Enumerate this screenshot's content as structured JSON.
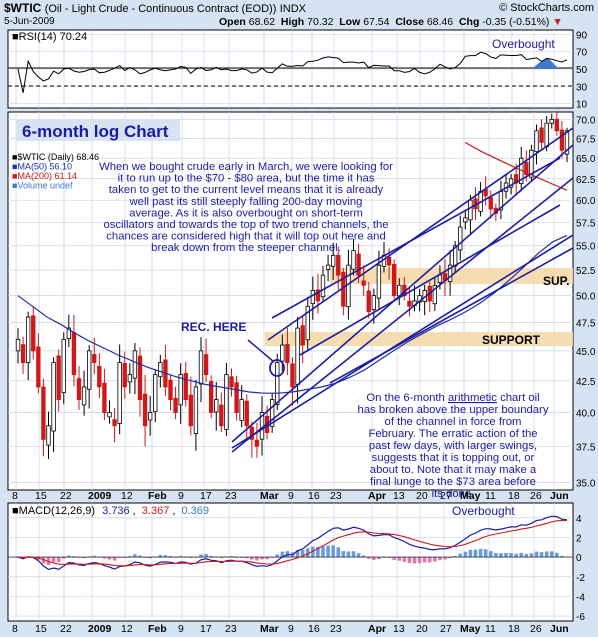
{
  "header": {
    "symbol": "$WTIC",
    "name": "(Oil - Light Crude - Continuous Contract (EOD))",
    "exchange": "INDX",
    "date": "5-Jun-2009",
    "open_label": "Open",
    "open": "68.62",
    "high_label": "High",
    "high": "70.32",
    "low_label": "Low",
    "low": "67.54",
    "close_label": "Close",
    "close": "68.46",
    "chg_label": "Chg",
    "chg": "-0.35 (-0.51%)",
    "copyright": "© StockCharts.com"
  },
  "rsi": {
    "label": "RSI(14) 70.24",
    "annotation": "Overbought",
    "ticks": [
      "90",
      "70",
      "50",
      "30",
      "10"
    ]
  },
  "price": {
    "chart_title": "6-month log Chart",
    "legend": [
      {
        "text": "$WTIC (Daily) 68.46",
        "color": "#000000"
      },
      {
        "text": "MA(50) 56.10",
        "color": "#1f2fa8"
      },
      {
        "text": "MA(200) 61.14",
        "color": "#d01818"
      },
      {
        "text": "Volume undef",
        "color": "#3a7ad0"
      }
    ],
    "ticks": [
      "70.0",
      "67.5",
      "65.0",
      "62.5",
      "60.0",
      "57.5",
      "55.0",
      "52.5",
      "50.0",
      "47.5",
      "45.0",
      "42.5",
      "40.0",
      "37.5",
      "35.0"
    ],
    "commentary_top": "When we bought crude early in March, we were looking for it to run up to the $70 - $80 area, but the time it has taken to get to the current level means that it is already well past its still steeply falling 200-day moving average. As it is also overbought on short-term oscillators and towards the top of two trend channels, the chances are considered high that it will top out here and break down from the steeper channel.",
    "commentary_bottom_1": "On the 6-month ",
    "commentary_bottom_u": "arithmetic",
    "commentary_bottom_2": " chart oil has broken above the upper boundary of the channel in force from February. The erratic action of the past few days, with larger swings, suggests that it is topping out, or about to. Note that it may make a final lunge to the $73 area before its done.",
    "rec_label": "REC. HERE",
    "sup_label": "SUP.",
    "support_label": "SUPPORT"
  },
  "macd": {
    "label_prefix": "MACD(12,26,9)",
    "val1": "3.736",
    "val2": "3.367",
    "val3": "0.369",
    "annotation": "Overbought",
    "ticks": [
      "4",
      "2",
      "0",
      "-2",
      "-4",
      "-6"
    ]
  },
  "xaxis": {
    "labels": [
      "8",
      "15",
      "22",
      "2009",
      "12",
      "Feb",
      "9",
      "17",
      "23",
      "Mar",
      "9",
      "16",
      "23",
      "Apr",
      "13",
      "20",
      "27",
      "May",
      "11",
      "18",
      "26",
      "Jun"
    ]
  },
  "colors": {
    "background": "#d6e3f3",
    "up_bar": "#000000",
    "down_bar": "#d01818",
    "ma50": "#1f2fa8",
    "ma200": "#d01818",
    "trendline": "#1c1ca0",
    "support_band": "#f5d9a8",
    "annotation_text": "#1c1ca0"
  },
  "chart_data": [
    {
      "type": "line",
      "title": "RSI(14) 70.24",
      "ylim": [
        10,
        90
      ],
      "series": [
        {
          "name": "RSI(14)",
          "last": 70.24
        }
      ]
    },
    {
      "type": "bar",
      "subtype": "ohlc",
      "title": "6-month log Chart",
      "log_scale": true,
      "ylim": [
        35,
        71
      ],
      "ohlc_last": {
        "open": 68.62,
        "high": 70.32,
        "low": 67.54,
        "close": 68.46
      },
      "closes": [
        46,
        44,
        48,
        45,
        42,
        38,
        39,
        44,
        41,
        46,
        47,
        43,
        41,
        42,
        45,
        44,
        42,
        40,
        40,
        39,
        44,
        42,
        43,
        45,
        41,
        39,
        40,
        43,
        44,
        42,
        41,
        40,
        43,
        41,
        39,
        42,
        45,
        43,
        40,
        41,
        39,
        43,
        42,
        40,
        41,
        39,
        38,
        37.5,
        40,
        38.5,
        41,
        44,
        45.5,
        44,
        42,
        47,
        45.5,
        49,
        50.5,
        49.5,
        52,
        53,
        54,
        52,
        49,
        53,
        54.5,
        52,
        51,
        48.5,
        50,
        53,
        54,
        53,
        50,
        51,
        50,
        49,
        49.5,
        50,
        50.5,
        49.5,
        51,
        52,
        51.5,
        53,
        55,
        57,
        58,
        60,
        59,
        61,
        60.5,
        59,
        58.5,
        61,
        62,
        62.5,
        62,
        65,
        63,
        66,
        68.5,
        67,
        69.5,
        70,
        68.5,
        66,
        68.5
      ],
      "series": [
        {
          "name": "MA(50)",
          "last": 56.1,
          "values": [
            50,
            49,
            48,
            47.3,
            46.5,
            45.8,
            45.2,
            44.6,
            44.1,
            43.6,
            43.2,
            42.8,
            42.5,
            42.2,
            42.0,
            41.8,
            41.6,
            41.5,
            41.5,
            41.6,
            41.8,
            42.0,
            42.3,
            42.8,
            43.4,
            44.2,
            45.0,
            45.8,
            46.5,
            47.2,
            47.8,
            48.5,
            49.3,
            50.3,
            51.5,
            52.8,
            54.2,
            55.4,
            56.1
          ]
        },
        {
          "name": "MA(200)",
          "last": 61.14,
          "values": [
            67,
            65.8,
            64.8,
            63.8,
            62.9,
            62.0,
            61.14
          ]
        }
      ]
    },
    {
      "type": "line",
      "title": "MACD(12,26,9)",
      "ylim": [
        -6.5,
        5.5
      ],
      "series": [
        {
          "name": "MACD",
          "last": 3.736
        },
        {
          "name": "Signal",
          "last": 3.367
        },
        {
          "name": "Histogram",
          "last": 0.369
        }
      ]
    }
  ]
}
